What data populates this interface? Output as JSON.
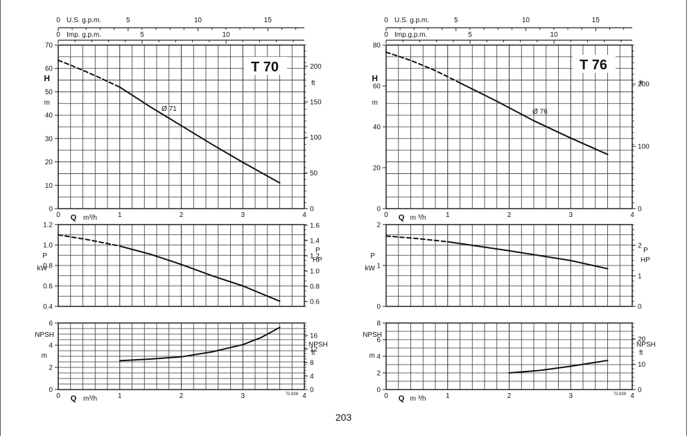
{
  "page_number": "203",
  "chart_data": [
    {
      "type": "line",
      "model": "T 70",
      "top_scale_1": {
        "label": "U.S. g.p.m.",
        "ticks": [
          "0",
          "5",
          "10",
          "15"
        ]
      },
      "top_scale_2": {
        "label": "Imp. g.p.m.",
        "ticks": [
          "0",
          "5",
          "10"
        ]
      },
      "x_axis": {
        "label_q": "Q",
        "label_unit": "m³/h",
        "ticks": [
          "0",
          "1",
          "2",
          "3",
          "4"
        ],
        "range": [
          0,
          4
        ]
      },
      "head": {
        "ylabel_left": "H",
        "unit_left": "m",
        "ylim": [
          0,
          70
        ],
        "ticks_left": [
          "0",
          "10",
          "20",
          "30",
          "40",
          "50",
          "60",
          "70"
        ],
        "unit_right": "ft",
        "ticks_right": [
          "0",
          "50",
          "100",
          "150",
          "200"
        ],
        "curve_label": "Ø 71",
        "dashed": {
          "x": [
            0,
            0.2,
            0.4,
            0.6,
            0.8,
            1.0
          ],
          "y": [
            63.5,
            61.4,
            59.2,
            56.9,
            54.5,
            52.0
          ]
        },
        "solid": {
          "x": [
            1.0,
            1.5,
            2.0,
            2.5,
            3.0,
            3.6
          ],
          "y": [
            52.0,
            43.5,
            35.5,
            27.5,
            19.8,
            11.0
          ]
        }
      },
      "power": {
        "ylabel_left": "P",
        "unit_left": "kW",
        "ylim": [
          0.4,
          1.2
        ],
        "ticks_left": [
          "0.4",
          "0.6",
          "0.8",
          "1.0",
          "1.2"
        ],
        "ylabel_right": "P",
        "unit_right": "HP",
        "ticks_right": [
          "0.6",
          "0.8",
          "1.0",
          "1.2",
          "1.4",
          "1.6"
        ],
        "dashed": {
          "x": [
            0,
            0.5,
            1.0
          ],
          "y": [
            1.1,
            1.05,
            0.99
          ]
        },
        "solid": {
          "x": [
            1.0,
            1.5,
            2.0,
            2.5,
            3.0,
            3.6
          ],
          "y": [
            0.99,
            0.91,
            0.81,
            0.7,
            0.6,
            0.45
          ]
        }
      },
      "npsh": {
        "ylabel_left": "NPSH",
        "unit_left": "m",
        "ylim": [
          0,
          6
        ],
        "ticks_left": [
          "0",
          "2",
          "4",
          "6"
        ],
        "ylabel_right": "NPSH",
        "unit_right": "ft",
        "ticks_right": [
          "0",
          "4",
          "8",
          "12",
          "16"
        ],
        "solid": {
          "x": [
            1.0,
            1.5,
            2.0,
            2.5,
            3.0,
            3.3,
            3.6
          ],
          "y": [
            2.6,
            2.75,
            2.95,
            3.4,
            4.05,
            4.7,
            5.6
          ]
        }
      },
      "code": "72.608"
    },
    {
      "type": "line",
      "model": "T 76",
      "top_scale_1": {
        "label": "U.S. g.p.m.",
        "ticks": [
          "0",
          "5",
          "10",
          "15"
        ]
      },
      "top_scale_2": {
        "label": "Imp.g.p.m.",
        "ticks": [
          "0",
          "5",
          "10"
        ]
      },
      "x_axis": {
        "label_q": "Q",
        "label_unit": "m ³/h",
        "ticks": [
          "0",
          "1",
          "2",
          "3",
          "4"
        ],
        "range": [
          0,
          4
        ]
      },
      "head": {
        "ylabel_left": "H",
        "unit_left": "m",
        "ylim": [
          0,
          80
        ],
        "ticks_left": [
          "0",
          "20",
          "40",
          "60",
          "80"
        ],
        "unit_right": "ft",
        "ticks_right": [
          "0",
          "100",
          "200"
        ],
        "curve_label": "Ø 76",
        "dashed": {
          "x": [
            0,
            0.4,
            0.8,
            1.2
          ],
          "y": [
            76.5,
            72.5,
            67.5,
            61.5
          ]
        },
        "solid": {
          "x": [
            1.2,
            1.8,
            2.4,
            3.0,
            3.6
          ],
          "y": [
            61.5,
            52.5,
            43.0,
            34.5,
            26.5
          ]
        }
      },
      "power": {
        "ylabel_left": "P",
        "unit_left": "kW",
        "ylim": [
          0,
          2
        ],
        "ticks_left": [
          "0",
          "1",
          "2"
        ],
        "ylabel_right": "P",
        "unit_right": "HP",
        "ticks_right": [
          "0",
          "1",
          "2"
        ],
        "dashed": {
          "x": [
            0,
            0.5,
            1.0
          ],
          "y": [
            1.72,
            1.66,
            1.58
          ]
        },
        "solid": {
          "x": [
            1.0,
            2.0,
            3.0,
            3.6
          ],
          "y": [
            1.58,
            1.36,
            1.12,
            0.92
          ]
        }
      },
      "npsh": {
        "ylabel_left": "NPSH",
        "unit_left": "m",
        "ylim": [
          0,
          8
        ],
        "ticks_left": [
          "0",
          "2",
          "4",
          "6",
          "8"
        ],
        "ylabel_right": "NPSH",
        "unit_right": "ft",
        "ticks_right": [
          "0",
          "10",
          "20"
        ],
        "solid": {
          "x": [
            2.0,
            2.5,
            3.0,
            3.6
          ],
          "y": [
            2.0,
            2.3,
            2.8,
            3.5
          ]
        }
      },
      "code": "72.609"
    }
  ]
}
